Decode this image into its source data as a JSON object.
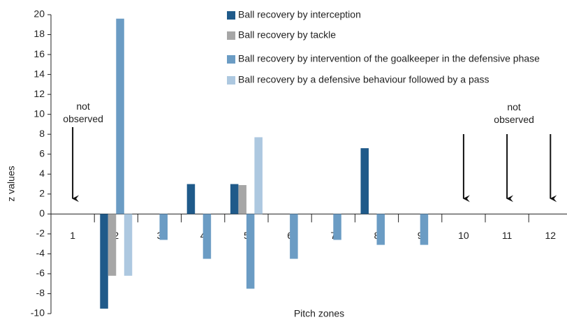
{
  "chart_data": {
    "type": "bar",
    "categories": [
      "1",
      "2",
      "3",
      "4",
      "5",
      "6",
      "7",
      "8",
      "9",
      "10",
      "11",
      "12"
    ],
    "series": [
      {
        "name": "Ball recovery by interception",
        "color": "#1f5a8a",
        "values": [
          null,
          -9.5,
          null,
          3.0,
          3.0,
          null,
          null,
          6.6,
          null,
          null,
          null,
          null
        ]
      },
      {
        "name": "Ball recovery by tackle",
        "color": "#a6a6a6",
        "values": [
          null,
          -6.2,
          null,
          null,
          2.9,
          null,
          null,
          null,
          null,
          null,
          null,
          null
        ]
      },
      {
        "name": "Ball recovery by intervention of the goalkeeper in the defensive phase",
        "color": "#6b9cc4",
        "values": [
          null,
          19.6,
          -2.6,
          -4.5,
          -7.5,
          -4.5,
          -2.6,
          -3.1,
          -3.1,
          null,
          null,
          null
        ]
      },
      {
        "name": "Ball recovery by a defensive behaviour followed by a pass",
        "color": "#adc8e0",
        "values": [
          null,
          -6.2,
          null,
          null,
          7.7,
          null,
          null,
          null,
          null,
          null,
          null,
          null
        ]
      }
    ],
    "ylim": [
      -10,
      20
    ],
    "yticks": [
      -10,
      -8,
      -6,
      -4,
      -2,
      0,
      2,
      4,
      6,
      8,
      10,
      12,
      14,
      16,
      18,
      20
    ],
    "ylabel": "z values",
    "xlabel": "Pitch zones",
    "annotations": [
      "not observed",
      "not observed"
    ],
    "legend": "top-center"
  }
}
